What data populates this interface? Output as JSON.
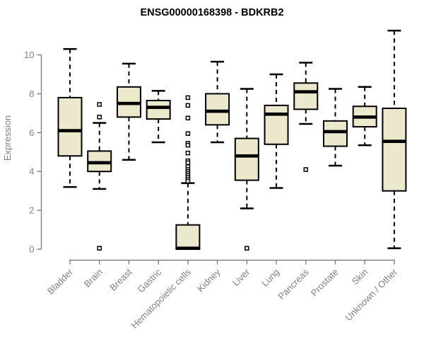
{
  "chart_data": {
    "type": "boxplot",
    "title": "ENSG00000168398 - BDKRB2",
    "ylabel": "Expression",
    "xlabel": "",
    "yticks": [
      0,
      2,
      4,
      6,
      8,
      10
    ],
    "ylim": [
      -0.3,
      11.5
    ],
    "grid": false,
    "legend": "none",
    "categories": [
      "Bladder",
      "Brain",
      "Breast",
      "Gastric",
      "Hematopoietic cells",
      "Kidney",
      "Liver",
      "Lung",
      "Pancreas",
      "Prostate",
      "Skin",
      "Unknown / Other"
    ],
    "series": [
      {
        "category": "Bladder",
        "low": 3.2,
        "q1": 4.8,
        "median": 6.1,
        "q3": 7.8,
        "high": 10.3,
        "outliers": []
      },
      {
        "category": "Brain",
        "low": 3.1,
        "q1": 4.0,
        "median": 4.45,
        "q3": 5.05,
        "high": 6.5,
        "outliers": [
          7.45,
          6.8,
          0.05
        ]
      },
      {
        "category": "Breast",
        "low": 4.6,
        "q1": 6.8,
        "median": 7.5,
        "q3": 8.35,
        "high": 9.55,
        "outliers": []
      },
      {
        "category": "Gastric",
        "low": 5.5,
        "q1": 6.7,
        "median": 7.3,
        "q3": 7.65,
        "high": 8.15,
        "outliers": []
      },
      {
        "category": "Hematopoietic cells",
        "low": 0.0,
        "q1": 0.0,
        "median": 0.05,
        "q3": 1.25,
        "high": 3.4,
        "outliers": [
          7.8,
          7.4,
          6.75,
          5.95,
          5.45,
          5.35,
          4.95,
          4.55,
          4.45,
          4.25,
          4.1,
          4.0,
          3.9,
          3.8,
          3.7,
          3.6,
          3.5
        ]
      },
      {
        "category": "Kidney",
        "low": 5.5,
        "q1": 6.4,
        "median": 7.1,
        "q3": 8.0,
        "high": 9.65,
        "outliers": []
      },
      {
        "category": "Liver",
        "low": 2.1,
        "q1": 3.55,
        "median": 4.8,
        "q3": 5.7,
        "high": 8.25,
        "outliers": [
          0.05
        ]
      },
      {
        "category": "Lung",
        "low": 3.15,
        "q1": 5.4,
        "median": 6.95,
        "q3": 7.4,
        "high": 9.0,
        "outliers": []
      },
      {
        "category": "Pancreas",
        "low": 6.45,
        "q1": 7.2,
        "median": 8.1,
        "q3": 8.55,
        "high": 9.6,
        "outliers": [
          4.1
        ]
      },
      {
        "category": "Prostate",
        "low": 4.3,
        "q1": 5.3,
        "median": 6.05,
        "q3": 6.6,
        "high": 8.25,
        "outliers": []
      },
      {
        "category": "Skin",
        "low": 5.35,
        "q1": 6.3,
        "median": 6.8,
        "q3": 7.35,
        "high": 8.35,
        "outliers": []
      },
      {
        "category": "Unknown / Other",
        "low": 0.05,
        "q1": 3.0,
        "median": 5.55,
        "q3": 7.25,
        "high": 11.25,
        "outliers": []
      }
    ],
    "colors": {
      "box_fill": "#ece8cc",
      "box_stroke": "#000000",
      "median": "#000000",
      "whisker": "#000000",
      "axis": "#808080",
      "tick_text": "#808080",
      "title_text": "#000000",
      "outlier_fill": "#ffffff",
      "background": "#ffffff"
    }
  }
}
